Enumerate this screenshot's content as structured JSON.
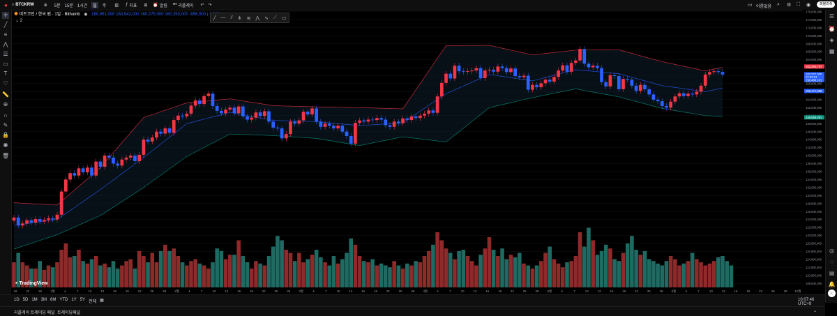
{
  "topbar": {
    "symbol": "BTCKRW",
    "intervals": [
      "5분",
      "15분",
      "1시간",
      "일",
      "주"
    ],
    "indicators_label": "지표",
    "alert_label": "알림",
    "replay_label": "리플레이",
    "account_label": "이름없음",
    "share_label": "퍼블리쉬"
  },
  "legend": {
    "title": "비트코인 / 한국 원 · 1일 · Bithumb",
    "values": [
      "160,951,000",
      "160,942,000",
      "160,275,000",
      "160,253,000",
      "-656,000 (-0.39%)"
    ],
    "sub": "2"
  },
  "price_axis": {
    "ticks": [
      "176,000,000",
      "174,000,000",
      "172,000,000",
      "170,000,000",
      "168,000,000",
      "166,000,000",
      "164,000,000",
      "162,000,000",
      "160,000,000",
      "158,000,000",
      "156,000,000",
      "154,000,000",
      "152,000,000",
      "150,000,000",
      "148,000,000",
      "146,000,000",
      "144,000,000",
      "142,000,000",
      "140,000,000",
      "138,000,000",
      "136,000,000",
      "134,000,000",
      "132,000,000",
      "130,000,000",
      "128,000,000",
      "126,000,000",
      "124,000,000",
      "122,000,000",
      "120,000,000",
      "118,000,000",
      "116,000,000",
      "114,000,000",
      "112,000,000",
      "110,000,000",
      "108,000,000"
    ],
    "labels": [
      {
        "text": "162,294,797",
        "color": "#f23645",
        "price": 162294797
      },
      {
        "text": "160,372,000",
        "color": "#2962ff",
        "price": 160372000
      },
      {
        "text": "22:52:13",
        "color": "#2962ff",
        "price": 159700000
      },
      {
        "text": "158,486,101",
        "color": "#2962ff",
        "price": 158900000
      },
      {
        "text": "156,171,086",
        "color": "#2962ff",
        "price": 156171086
      },
      {
        "text": "149,558,091",
        "color": "#089981",
        "price": 149558091
      }
    ]
  },
  "time_axis": {
    "ticks": [
      "18",
      "22",
      "25",
      "1월",
      "4",
      "7",
      "10",
      "13",
      "16",
      "19",
      "22",
      "25",
      "28",
      "2월",
      "4",
      "7",
      "10",
      "13",
      "16",
      "19",
      "22",
      "25",
      "28",
      "3월",
      "4",
      "7",
      "10",
      "13",
      "16",
      "19",
      "22",
      "25",
      "28",
      "4월",
      "4",
      "7",
      "10",
      "13",
      "16",
      "19",
      "22",
      "25",
      "28",
      "5월",
      "4",
      "7",
      "10",
      "13",
      "16",
      "19",
      "22",
      "25",
      "28",
      "6월",
      "4",
      "7",
      "10",
      "13",
      "16",
      "19",
      "22",
      "25",
      "28",
      "10월"
    ]
  },
  "bottombar": {
    "ranges": [
      "1D",
      "5D",
      "1M",
      "3M",
      "6M",
      "YTD",
      "1Y",
      "5Y",
      "전체"
    ],
    "tabs": [
      "리플레이 트레이딩 패널",
      "트레이딩패널"
    ],
    "clock": "10:07:46 UTC+9"
  },
  "branding": {
    "logo": "TradingView"
  },
  "colors": {
    "up": "#f23645",
    "down": "#2962ff",
    "vol_up": "#8e2a2a",
    "vol_down": "#1f6b63",
    "band": "#f23645",
    "lower_band": "#089981",
    "basis": "#2962ff"
  },
  "chart_data": {
    "type": "candlestick",
    "y_range": [
      107000000,
      176500000
    ],
    "closes": [
      124500000,
      122500000,
      123000000,
      123800000,
      123200000,
      124100000,
      123500000,
      123900000,
      124300000,
      124000000,
      125200000,
      131000000,
      134000000,
      135600000,
      135000000,
      136800000,
      135800000,
      137000000,
      135000000,
      138500000,
      137200000,
      140000000,
      139500000,
      138000000,
      137500000,
      139000000,
      139500000,
      140000000,
      138600000,
      140200000,
      144000000,
      143500000,
      144500000,
      146000000,
      145500000,
      146800000,
      145700000,
      148900000,
      150000000,
      149800000,
      150500000,
      152500000,
      153800000,
      152900000,
      154900000,
      155500000,
      152400000,
      151200000,
      150600000,
      151500000,
      152000000,
      150600000,
      152300000,
      149800000,
      149000000,
      149500000,
      150800000,
      149900000,
      151100000,
      148500000,
      147000000,
      146800000,
      144300000,
      145400000,
      148500000,
      148000000,
      148800000,
      151000000,
      150300000,
      151800000,
      148500000,
      147200000,
      148000000,
      147500000,
      146800000,
      147500000,
      146000000,
      144900000,
      143000000,
      148200000,
      148800000,
      148500000,
      149000000,
      148900000,
      149400000,
      149000000,
      147600000,
      147200000,
      148500000,
      148100000,
      149300000,
      148900000,
      149800000,
      149400000,
      150000000,
      150500000,
      151300000,
      150700000,
      154800000,
      158200000,
      160500000,
      159300000,
      162500000,
      161100000,
      161000000,
      161100000,
      161300000,
      161900000,
      159400000,
      161300000,
      161500000,
      161000000,
      162300000,
      161900000,
      160900000,
      161800000,
      159900000,
      159600000,
      160000000,
      156500000,
      157700000,
      157100000,
      158100000,
      159000000,
      158500000,
      159700000,
      161300000,
      162600000,
      161000000,
      163200000,
      163800000,
      166700000,
      163000000,
      162100000,
      162500000,
      161900000,
      158400000,
      157300000,
      160100000,
      159900000,
      156600000,
      159200000,
      159000000,
      157500000,
      156200000,
      157700000,
      156600000,
      155300000,
      154000000,
      153600000,
      152400000,
      152000000,
      153500000,
      154800000,
      155600000,
      154900000,
      155500000,
      155300000,
      156000000,
      157500000,
      160300000,
      160900000,
      161100000,
      160900000,
      160300000
    ],
    "volume_relative": [
      0.4,
      0.55,
      0.4,
      0.35,
      0.3,
      0.3,
      0.42,
      0.28,
      0.35,
      0.32,
      0.4,
      0.6,
      0.7,
      0.48,
      0.5,
      0.6,
      0.42,
      0.38,
      0.45,
      0.5,
      0.35,
      0.38,
      0.32,
      0.42,
      0.3,
      0.35,
      0.42,
      0.45,
      0.3,
      0.58,
      0.5,
      0.4,
      0.55,
      0.4,
      0.58,
      0.68,
      0.58,
      0.62,
      0.5,
      0.4,
      0.35,
      0.42,
      0.45,
      0.38,
      0.35,
      0.3,
      0.4,
      0.62,
      0.58,
      0.45,
      0.52,
      0.52,
      0.75,
      0.5,
      0.4,
      0.3,
      0.42,
      0.38,
      0.35,
      0.5,
      0.65,
      0.82,
      0.75,
      0.6,
      0.55,
      0.42,
      0.55,
      0.4,
      0.45,
      0.52,
      0.6,
      0.48,
      0.4,
      0.35,
      0.5,
      0.38,
      0.45,
      0.55,
      0.78,
      0.68,
      0.5,
      0.42,
      0.4,
      0.45,
      0.35,
      0.38,
      0.35,
      0.32,
      0.42,
      0.35,
      0.3,
      0.38,
      0.35,
      0.42,
      0.4,
      0.5,
      0.58,
      0.68,
      0.88,
      0.75,
      0.62,
      0.55,
      0.45,
      0.58,
      0.6,
      0.5,
      0.42,
      0.35,
      0.52,
      0.62,
      0.8,
      0.6,
      0.5,
      0.62,
      0.45,
      0.52,
      0.48,
      0.55,
      0.38,
      0.35,
      0.3,
      0.35,
      0.42,
      0.55,
      0.65,
      0.45,
      0.38,
      0.32,
      0.4,
      0.42,
      0.5,
      0.88,
      0.65,
      0.95,
      0.75,
      0.52,
      0.58,
      0.68,
      0.62,
      0.45,
      0.42,
      0.55,
      0.7,
      0.82,
      0.6,
      0.52,
      0.58,
      0.45,
      0.42,
      0.38,
      0.35,
      0.42,
      0.5,
      0.45,
      0.35,
      0.38,
      0.42,
      0.55,
      0.45,
      0.4,
      0.35,
      0.38,
      0.42,
      0.48,
      0.5,
      0.42,
      0.35
    ],
    "bollinger": {
      "upper": [
        [
          0,
          128200000
        ],
        [
          10,
          127600000
        ],
        [
          20,
          137000000
        ],
        [
          30,
          149500000
        ],
        [
          40,
          153200000
        ],
        [
          50,
          154200000
        ],
        [
          60,
          152500000
        ],
        [
          70,
          152200000
        ],
        [
          80,
          152000000
        ],
        [
          90,
          151700000
        ],
        [
          100,
          167500000
        ],
        [
          110,
          167600000
        ],
        [
          120,
          165200000
        ],
        [
          130,
          166400000
        ],
        [
          140,
          166500000
        ],
        [
          150,
          163500000
        ],
        [
          160,
          161200000
        ],
        [
          168,
          163000000
        ]
      ],
      "basis": [
        [
          0,
          122500000
        ],
        [
          10,
          124000000
        ],
        [
          20,
          131500000
        ],
        [
          30,
          139500000
        ],
        [
          40,
          148000000
        ],
        [
          50,
          150800000
        ],
        [
          60,
          148800000
        ],
        [
          70,
          148500000
        ],
        [
          80,
          147500000
        ],
        [
          90,
          148200000
        ],
        [
          100,
          155500000
        ],
        [
          110,
          160300000
        ],
        [
          120,
          158700000
        ],
        [
          130,
          161500000
        ],
        [
          140,
          160500000
        ],
        [
          150,
          157500000
        ],
        [
          160,
          156000000
        ],
        [
          168,
          157800000
        ]
      ],
      "lower": [
        [
          0,
          116600000
        ],
        [
          10,
          120200000
        ],
        [
          20,
          125000000
        ],
        [
          30,
          132000000
        ],
        [
          40,
          139800000
        ],
        [
          50,
          145400000
        ],
        [
          60,
          145000000
        ],
        [
          70,
          144300000
        ],
        [
          80,
          142500000
        ],
        [
          90,
          144700000
        ],
        [
          100,
          143400000
        ],
        [
          110,
          152000000
        ],
        [
          120,
          154500000
        ],
        [
          130,
          156700000
        ],
        [
          140,
          154700000
        ],
        [
          150,
          151800000
        ],
        [
          160,
          150000000
        ],
        [
          168,
          149600000
        ]
      ]
    }
  }
}
